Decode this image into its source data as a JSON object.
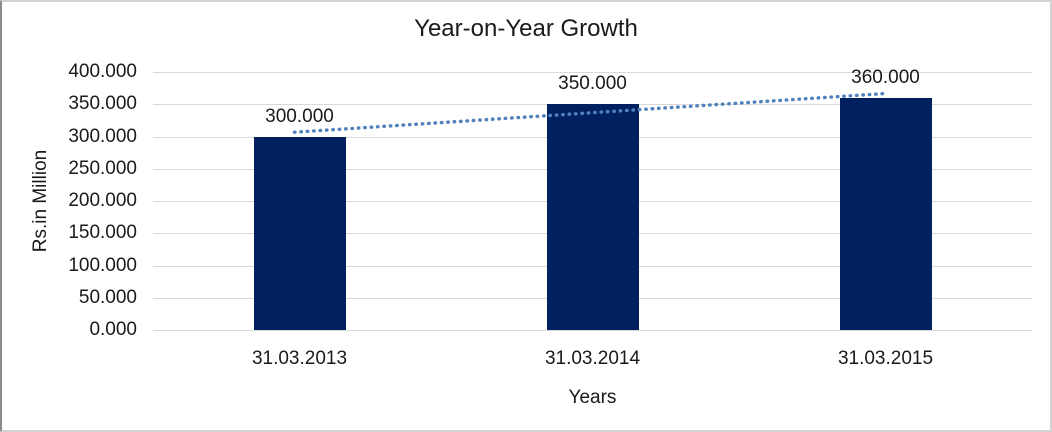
{
  "chart_data": {
    "type": "bar",
    "title": "Year-on-Year Growth",
    "xlabel": "Years",
    "ylabel": "Rs.in Million",
    "categories": [
      "31.03.2013",
      "31.03.2014",
      "31.03.2015"
    ],
    "values": [
      300,
      350,
      360
    ],
    "data_labels": [
      "300.000",
      "350.000",
      "360.000"
    ],
    "ylim": [
      0,
      400
    ],
    "y_ticks": [
      0,
      50,
      100,
      150,
      200,
      250,
      300,
      350,
      400
    ],
    "y_tick_labels": [
      "0.000",
      "50.000",
      "100.000",
      "150.000",
      "200.000",
      "250.000",
      "300.000",
      "350.000",
      "400.000"
    ],
    "grid": true,
    "legend": "none",
    "trendline": {
      "type": "linear",
      "style": "dotted"
    },
    "colors": {
      "bar": "#002060",
      "trendline": "#4F81BD",
      "gridline": "#D9D9D9",
      "text": "#1A1A1A"
    }
  }
}
